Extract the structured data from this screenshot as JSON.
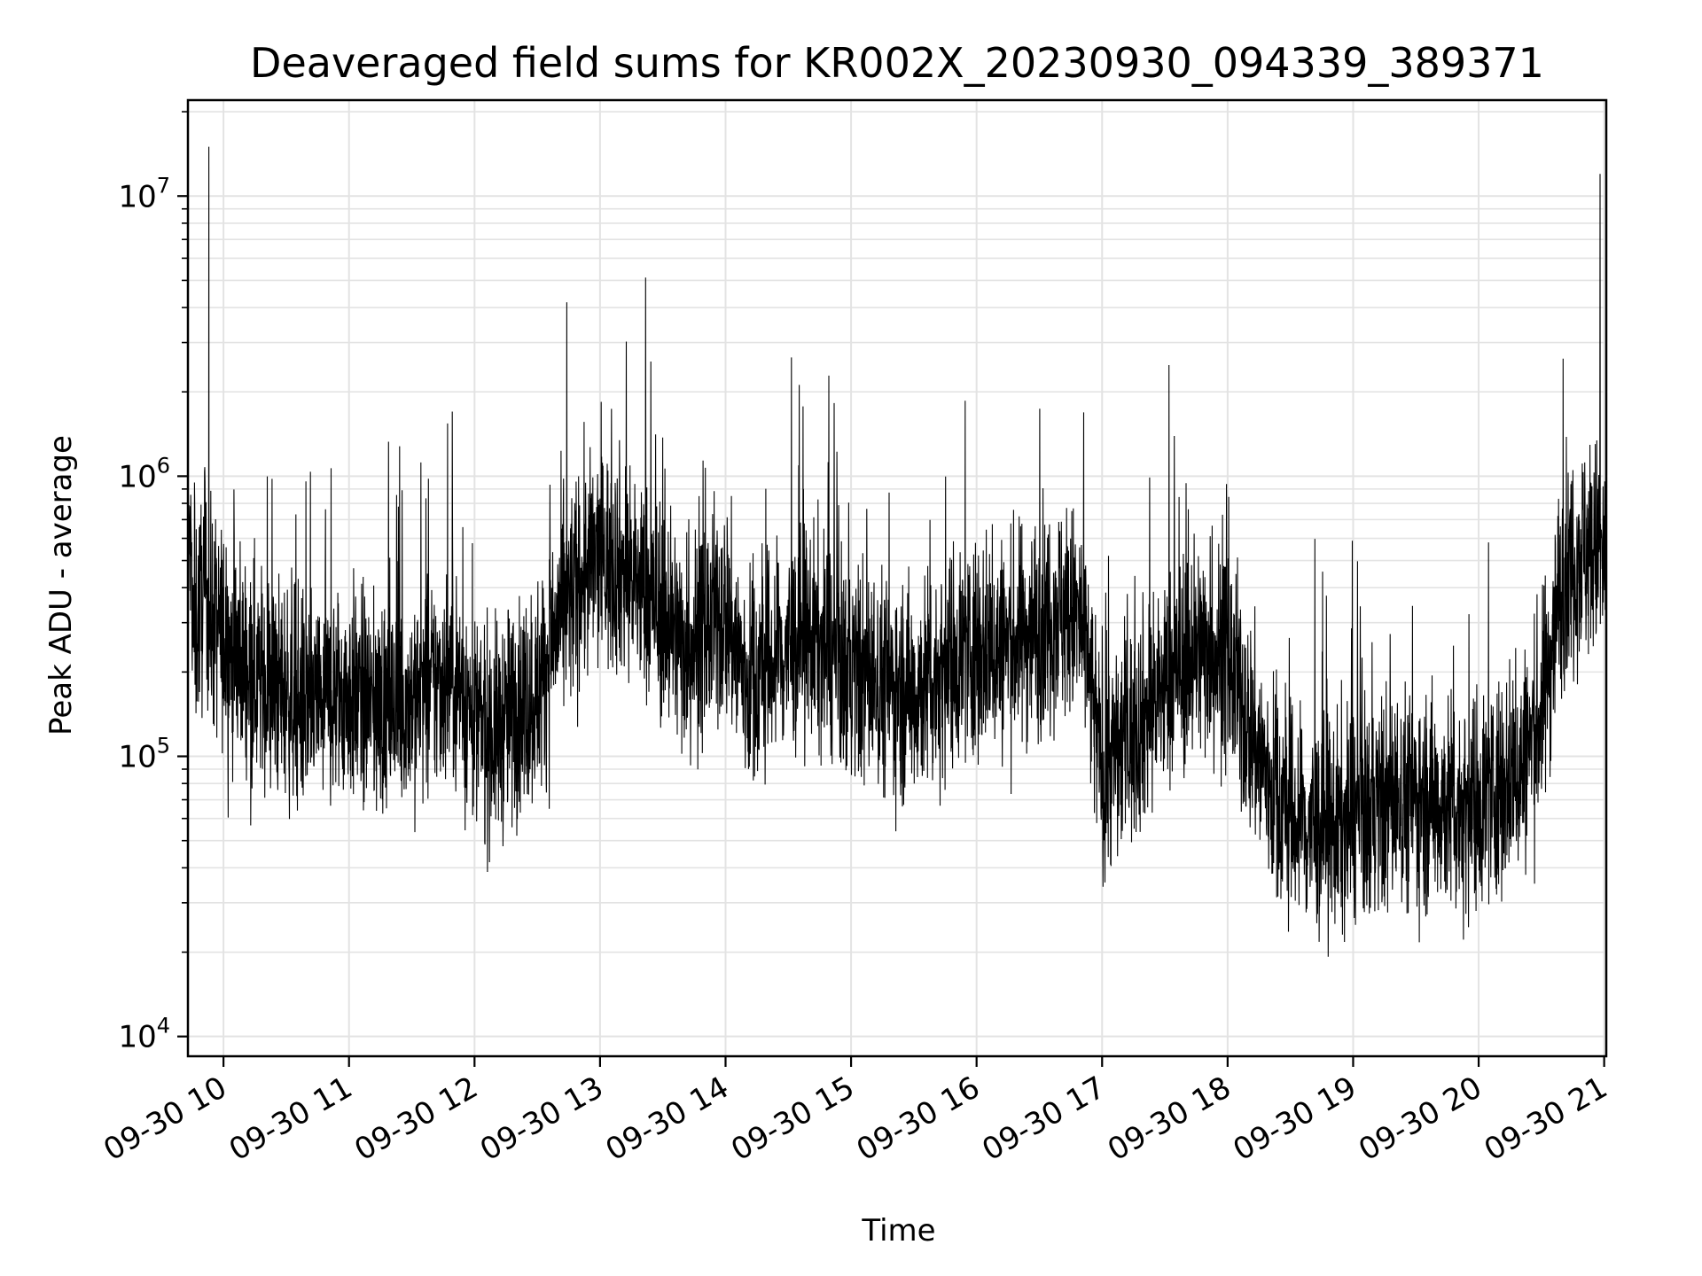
{
  "chart_data": {
    "type": "line",
    "title": "Deaveraged field sums for KR002X_20230930_094339_389371",
    "xlabel": "Time",
    "ylabel": "Peak ADU - average",
    "yscale": "log",
    "ylim": [
      8500,
      22000000
    ],
    "xlim": [
      "2023-09-30 09:43",
      "2023-09-30 21:01"
    ],
    "grid": true,
    "line_color": "#000000",
    "x_ticks": [
      "09-30 10",
      "09-30 11",
      "09-30 12",
      "09-30 13",
      "09-30 14",
      "09-30 15",
      "09-30 16",
      "09-30 17",
      "09-30 18",
      "09-30 19",
      "09-30 20",
      "09-30 21"
    ],
    "y_ticks": [
      {
        "base": "10",
        "exp": "4",
        "value": 10000
      },
      {
        "base": "10",
        "exp": "5",
        "value": 100000
      },
      {
        "base": "10",
        "exp": "6",
        "value": 1000000
      },
      {
        "base": "10",
        "exp": "7",
        "value": 10000000
      }
    ],
    "series": [
      {
        "points": [
          [
            "2023-09-30 09:45",
            250000
          ],
          [
            "2023-09-30 09:50",
            380000
          ],
          [
            "2023-09-30 09:53",
            15000000
          ],
          [
            "2023-09-30 09:56",
            300000
          ],
          [
            "2023-09-30 10:00",
            260000
          ],
          [
            "2023-09-30 10:10",
            220000
          ],
          [
            "2023-09-30 10:20",
            180000
          ],
          [
            "2023-09-30 10:30",
            170000
          ],
          [
            "2023-09-30 10:40",
            150000
          ],
          [
            "2023-09-30 10:50",
            160000
          ],
          [
            "2023-09-30 11:00",
            170000
          ],
          [
            "2023-09-30 11:10",
            150000
          ],
          [
            "2023-09-30 11:20",
            150000
          ],
          [
            "2023-09-30 11:30",
            160000
          ],
          [
            "2023-09-30 11:40",
            180000
          ],
          [
            "2023-09-30 11:50",
            200000
          ],
          [
            "2023-09-30 12:00",
            130000
          ],
          [
            "2023-09-30 12:10",
            120000
          ],
          [
            "2023-09-30 12:20",
            150000
          ],
          [
            "2023-09-30 12:30",
            170000
          ],
          [
            "2023-09-30 12:40",
            300000
          ],
          [
            "2023-09-30 12:50",
            420000
          ],
          [
            "2023-09-30 13:00",
            520000
          ],
          [
            "2023-09-30 13:10",
            480000
          ],
          [
            "2023-09-30 13:20",
            400000
          ],
          [
            "2023-09-30 13:30",
            320000
          ],
          [
            "2023-09-30 13:40",
            250000
          ],
          [
            "2023-09-30 13:50",
            270000
          ],
          [
            "2023-09-30 14:00",
            330000
          ],
          [
            "2023-09-30 14:10",
            180000
          ],
          [
            "2023-09-30 14:20",
            210000
          ],
          [
            "2023-09-30 14:30",
            240000
          ],
          [
            "2023-09-30 14:40",
            270000
          ],
          [
            "2023-09-30 14:50",
            230000
          ],
          [
            "2023-09-30 15:00",
            200000
          ],
          [
            "2023-09-30 15:10",
            190000
          ],
          [
            "2023-09-30 15:20",
            180000
          ],
          [
            "2023-09-30 15:30",
            170000
          ],
          [
            "2023-09-30 15:40",
            190000
          ],
          [
            "2023-09-30 15:50",
            230000
          ],
          [
            "2023-09-30 16:00",
            250000
          ],
          [
            "2023-09-30 16:10",
            240000
          ],
          [
            "2023-09-30 16:20",
            260000
          ],
          [
            "2023-09-30 16:30",
            300000
          ],
          [
            "2023-09-30 16:40",
            340000
          ],
          [
            "2023-09-30 16:50",
            300000
          ],
          [
            "2023-09-30 17:00",
            90000
          ],
          [
            "2023-09-30 17:10",
            110000
          ],
          [
            "2023-09-30 17:20",
            140000
          ],
          [
            "2023-09-30 17:30",
            180000
          ],
          [
            "2023-09-30 17:40",
            220000
          ],
          [
            "2023-09-30 17:50",
            250000
          ],
          [
            "2023-09-30 18:00",
            220000
          ],
          [
            "2023-09-30 18:10",
            130000
          ],
          [
            "2023-09-30 18:20",
            80000
          ],
          [
            "2023-09-30 18:30",
            60000
          ],
          [
            "2023-09-30 18:40",
            55000
          ],
          [
            "2023-09-30 18:50",
            55000
          ],
          [
            "2023-09-30 19:00",
            60000
          ],
          [
            "2023-09-30 19:10",
            65000
          ],
          [
            "2023-09-30 19:20",
            70000
          ],
          [
            "2023-09-30 19:30",
            72000
          ],
          [
            "2023-09-30 19:40",
            70000
          ],
          [
            "2023-09-30 19:50",
            65000
          ],
          [
            "2023-09-30 20:00",
            70000
          ],
          [
            "2023-09-30 20:10",
            80000
          ],
          [
            "2023-09-30 20:20",
            90000
          ],
          [
            "2023-09-30 20:30",
            140000
          ],
          [
            "2023-09-30 20:40",
            450000
          ],
          [
            "2023-09-30 20:50",
            550000
          ],
          [
            "2023-09-30 20:58",
            12000000
          ],
          [
            "2023-09-30 21:00",
            500000
          ]
        ]
      }
    ]
  }
}
